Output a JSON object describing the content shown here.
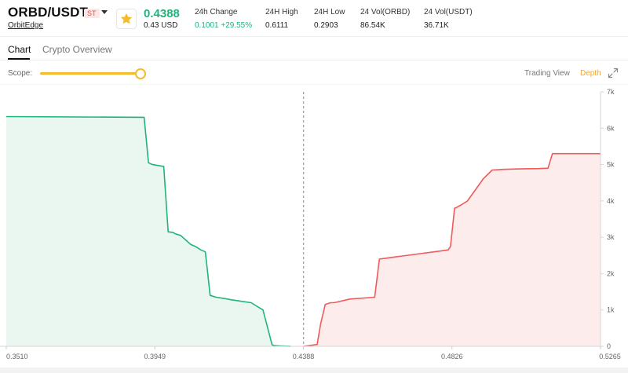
{
  "ticker": {
    "pair": "ORBD/USDT",
    "badge": "ST",
    "exchange": "OrbitEdge",
    "price": "0.4388",
    "price_usd": "0.43 USD",
    "stats": [
      {
        "label": "24h Change",
        "value": "0.1001 +29.55%"
      },
      {
        "label": "24H High",
        "value": "0.6111"
      },
      {
        "label": "24H Low",
        "value": "0.2903"
      },
      {
        "label": "24 Vol(ORBD)",
        "value": "86.54K"
      },
      {
        "label": "24 Vol(USDT)",
        "value": "36.71K"
      }
    ]
  },
  "tabs": [
    {
      "label": "Chart",
      "active": true
    },
    {
      "label": "Crypto Overview",
      "active": false
    }
  ],
  "controls": {
    "scope_label": "Scope:",
    "scope_level": 1.0,
    "trading_view_label": "Trading View",
    "depth_label": "Depth",
    "active_view": "Depth"
  },
  "colors": {
    "bid": "#1db57a",
    "ask": "#ef5a5a",
    "accent": "#f5bb2b",
    "up": "#1db57a"
  },
  "icons": {
    "favorite": "star-icon",
    "dropdown": "caret-down-icon",
    "expand": "expand-icon"
  },
  "chart_data": {
    "type": "area",
    "mid_price": 0.4388,
    "xlim": [
      0.351,
      0.5265
    ],
    "ylim": [
      0,
      7000
    ],
    "x_ticks": [
      "0.3510",
      "0.3949",
      "0.4388",
      "0.4826",
      "0.5265"
    ],
    "y_ticks": [
      "0",
      "1k",
      "2k",
      "3k",
      "4k",
      "5k",
      "6k",
      "7k"
    ],
    "grid": false,
    "series": [
      {
        "side": "bid",
        "x": [
          0.351,
          0.3917,
          0.393,
          0.3942,
          0.3975,
          0.3988,
          0.4003,
          0.4008,
          0.4025,
          0.4055,
          0.4068,
          0.4085,
          0.4098,
          0.4112,
          0.413,
          0.4152,
          0.4175,
          0.4195,
          0.4233,
          0.4268,
          0.4295,
          0.4302,
          0.4318,
          0.435
        ],
        "y": [
          6320,
          6300,
          5050,
          5000,
          4950,
          3150,
          3130,
          3100,
          3050,
          2800,
          2750,
          2650,
          2600,
          1400,
          1350,
          1320,
          1280,
          1250,
          1200,
          1000,
          40,
          20,
          10,
          0
        ]
      },
      {
        "side": "ask",
        "x": [
          0.4388,
          0.4428,
          0.4438,
          0.4452,
          0.4468,
          0.4478,
          0.4525,
          0.4598,
          0.4612,
          0.4652,
          0.4815,
          0.4822,
          0.4834,
          0.4836,
          0.4855,
          0.4872,
          0.4895,
          0.4918,
          0.4945,
          0.4985,
          0.5025,
          0.5082,
          0.511,
          0.5123,
          0.514,
          0.5265
        ],
        "y": [
          0,
          50,
          600,
          1150,
          1200,
          1200,
          1300,
          1350,
          2400,
          2450,
          2650,
          2750,
          3800,
          3800,
          3900,
          4000,
          4300,
          4600,
          4850,
          4870,
          4880,
          4890,
          4900,
          5300,
          5300,
          5300
        ]
      }
    ]
  }
}
